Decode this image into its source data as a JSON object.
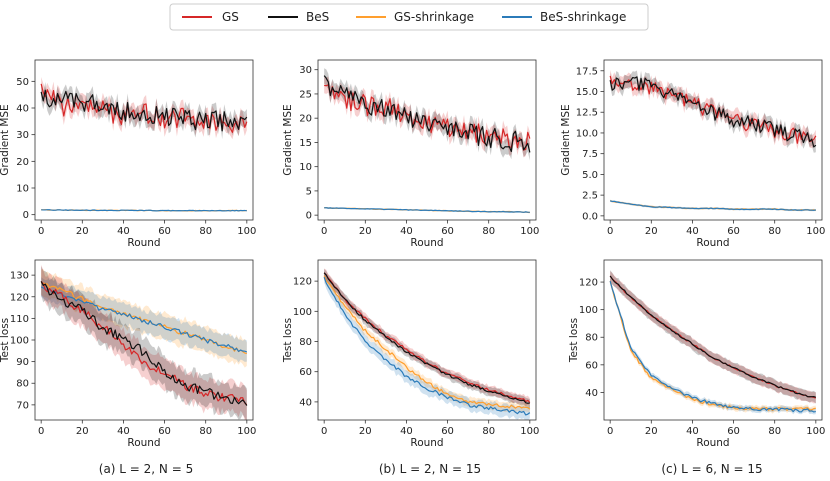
{
  "legend": [
    {
      "name": "GS",
      "color": "#d62728"
    },
    {
      "name": "BeS",
      "color": "#111111"
    },
    {
      "name": "GS-shrinkage",
      "color": "#ff9f2e"
    },
    {
      "name": "BeS-shrinkage",
      "color": "#2b7bb9"
    }
  ],
  "captions": [
    "(a) L = 2, N = 5",
    "(b) L = 2, N = 15",
    "(c) L = 6, N = 15"
  ],
  "chart_data": [
    {
      "type": "line",
      "title": "",
      "xlabel": "Round",
      "ylabel": "Gradient MSE",
      "xlim": [
        -3,
        103
      ],
      "ylim": [
        -2,
        58
      ],
      "xticks": [
        0,
        20,
        40,
        60,
        80,
        100
      ],
      "yticks": [
        0,
        10,
        20,
        30,
        40,
        50
      ],
      "x": [
        0,
        10,
        20,
        30,
        40,
        50,
        60,
        70,
        80,
        90,
        100
      ],
      "series": [
        {
          "name": "GS",
          "values": [
            48,
            41,
            40,
            39,
            37,
            38,
            36,
            37,
            35,
            34,
            34
          ],
          "spread": 3.5,
          "noise": 4,
          "band": 3
        },
        {
          "name": "BeS",
          "values": [
            45,
            42,
            43,
            40,
            38,
            37,
            37,
            36,
            35,
            35,
            33
          ],
          "spread": 3.5,
          "noise": 4,
          "band": 3
        },
        {
          "name": "GS-shrinkage",
          "values": [
            1.8,
            1.7,
            1.7,
            1.6,
            1.6,
            1.6,
            1.5,
            1.5,
            1.5,
            1.5,
            1.5
          ],
          "spread": 0.1,
          "noise": 0.05,
          "band": 0.2
        },
        {
          "name": "BeS-shrinkage",
          "values": [
            1.8,
            1.7,
            1.7,
            1.6,
            1.6,
            1.6,
            1.5,
            1.5,
            1.5,
            1.5,
            1.5
          ],
          "spread": 0.1,
          "noise": 0.05,
          "band": 0.2
        }
      ]
    },
    {
      "type": "line",
      "title": "",
      "xlabel": "Round",
      "ylabel": "Gradient MSE",
      "xlim": [
        -3,
        103
      ],
      "ylim": [
        -1,
        32
      ],
      "xticks": [
        0,
        20,
        40,
        60,
        80,
        100
      ],
      "yticks": [
        0,
        5,
        10,
        15,
        20,
        25,
        30
      ],
      "x": [
        0,
        10,
        20,
        30,
        40,
        50,
        60,
        70,
        80,
        90,
        100
      ],
      "series": [
        {
          "name": "GS",
          "values": [
            26,
            24,
            23,
            22,
            20,
            19,
            18,
            17,
            16,
            15.5,
            15
          ],
          "spread": 2,
          "noise": 2.2,
          "band": 1.6
        },
        {
          "name": "BeS",
          "values": [
            28,
            25,
            23,
            22,
            20,
            19,
            18,
            17,
            16,
            15.5,
            15
          ],
          "spread": 2,
          "noise": 2.2,
          "band": 1.6
        },
        {
          "name": "GS-shrinkage",
          "values": [
            1.5,
            1.4,
            1.3,
            1.2,
            1.1,
            1.0,
            0.9,
            0.8,
            0.7,
            0.7,
            0.6
          ],
          "spread": 0.05,
          "noise": 0.03,
          "band": 0.15
        },
        {
          "name": "BeS-shrinkage",
          "values": [
            1.5,
            1.4,
            1.3,
            1.2,
            1.1,
            1.0,
            0.9,
            0.8,
            0.7,
            0.7,
            0.6
          ],
          "spread": 0.05,
          "noise": 0.03,
          "band": 0.15
        }
      ]
    },
    {
      "type": "line",
      "title": "",
      "xlabel": "Round",
      "ylabel": "Gradient MSE",
      "xlim": [
        -3,
        103
      ],
      "ylim": [
        -0.5,
        18.8
      ],
      "xticks": [
        0,
        20,
        40,
        60,
        80,
        100
      ],
      "yticks": [
        0.0,
        2.5,
        5.0,
        7.5,
        10.0,
        12.5,
        15.0,
        17.5
      ],
      "x": [
        0,
        10,
        20,
        30,
        40,
        50,
        60,
        70,
        80,
        90,
        100
      ],
      "series": [
        {
          "name": "GS",
          "values": [
            16.5,
            16,
            15.5,
            14.5,
            13.5,
            12.5,
            11.5,
            11,
            10.3,
            9.7,
            9
          ],
          "spread": 0.8,
          "noise": 0.9,
          "band": 0.8
        },
        {
          "name": "BeS",
          "values": [
            16,
            16.2,
            15.8,
            14.5,
            13.5,
            12.5,
            11.5,
            11,
            10.3,
            9.7,
            9
          ],
          "spread": 0.8,
          "noise": 0.9,
          "band": 0.8
        },
        {
          "name": "GS-shrinkage",
          "values": [
            1.8,
            1.4,
            1.1,
            1.0,
            0.9,
            0.9,
            0.8,
            0.8,
            0.8,
            0.7,
            0.7
          ],
          "spread": 0.04,
          "noise": 0.03,
          "band": 0.12
        },
        {
          "name": "BeS-shrinkage",
          "values": [
            1.8,
            1.4,
            1.1,
            1.0,
            0.9,
            0.9,
            0.8,
            0.8,
            0.8,
            0.7,
            0.7
          ],
          "spread": 0.04,
          "noise": 0.03,
          "band": 0.12
        }
      ]
    },
    {
      "type": "line",
      "title": "",
      "xlabel": "Round",
      "ylabel": "Test loss",
      "xlim": [
        -3,
        103
      ],
      "ylim": [
        63,
        137
      ],
      "xticks": [
        0,
        20,
        40,
        60,
        80,
        100
      ],
      "yticks": [
        70,
        80,
        90,
        100,
        110,
        120,
        130
      ],
      "x": [
        0,
        10,
        20,
        30,
        40,
        50,
        60,
        70,
        80,
        90,
        100
      ],
      "series": [
        {
          "name": "GS",
          "values": [
            126,
            121,
            113,
            106,
            98,
            90,
            84,
            79,
            75,
            73,
            72
          ],
          "spread": 2,
          "noise": 1.6,
          "band": 7
        },
        {
          "name": "BeS",
          "values": [
            126,
            118,
            114,
            105,
            101,
            94,
            85,
            79,
            76,
            73,
            70
          ],
          "spread": 2,
          "noise": 1.6,
          "band": 7
        },
        {
          "name": "GS-shrinkage",
          "values": [
            126,
            123,
            119,
            115,
            112,
            109,
            106,
            103,
            100,
            97,
            94
          ],
          "spread": 1,
          "noise": 0.8,
          "band": 6
        },
        {
          "name": "BeS-shrinkage",
          "values": [
            124,
            121,
            118,
            114,
            112,
            109,
            106,
            103,
            100,
            97,
            94
          ],
          "spread": 1,
          "noise": 0.8,
          "band": 5
        }
      ]
    },
    {
      "type": "line",
      "title": "",
      "xlabel": "Round",
      "ylabel": "Test loss",
      "xlim": [
        -3,
        103
      ],
      "ylim": [
        28,
        134
      ],
      "xticks": [
        0,
        20,
        40,
        60,
        80,
        100
      ],
      "yticks": [
        40,
        60,
        80,
        100,
        120
      ],
      "x": [
        0,
        10,
        20,
        30,
        40,
        50,
        60,
        70,
        80,
        90,
        100
      ],
      "series": [
        {
          "name": "GS",
          "values": [
            125,
            108,
            95,
            84,
            75,
            66,
            59,
            53,
            48,
            44,
            40
          ],
          "spread": 0.8,
          "noise": 0.8,
          "band": 3
        },
        {
          "name": "BeS",
          "values": [
            125,
            108,
            94,
            83,
            73,
            65,
            58,
            52,
            47,
            43,
            39
          ],
          "spread": 0.8,
          "noise": 0.8,
          "band": 3
        },
        {
          "name": "GS-shrinkage",
          "values": [
            123,
            103,
            87,
            75,
            63,
            53,
            45,
            40,
            38,
            37,
            35
          ],
          "spread": 1,
          "noise": 0.8,
          "band": 3
        },
        {
          "name": "BeS-shrinkage",
          "values": [
            122,
            98,
            80,
            68,
            57,
            49,
            43,
            38,
            36,
            34,
            32
          ],
          "spread": 1,
          "noise": 0.8,
          "band": 4
        }
      ]
    },
    {
      "type": "line",
      "title": "",
      "xlabel": "Round",
      "ylabel": "Test loss",
      "xlim": [
        -3,
        103
      ],
      "ylim": [
        20,
        136
      ],
      "xticks": [
        0,
        20,
        40,
        60,
        80,
        100
      ],
      "yticks": [
        40,
        60,
        80,
        100,
        120
      ],
      "x": [
        0,
        10,
        20,
        30,
        40,
        50,
        60,
        70,
        80,
        90,
        100
      ],
      "series": [
        {
          "name": "GS",
          "values": [
            124,
            109,
            96,
            85,
            75,
            65,
            58,
            51,
            45,
            40,
            36
          ],
          "spread": 0.6,
          "noise": 0.5,
          "band": 4
        },
        {
          "name": "BeS",
          "values": [
            124,
            109,
            96,
            85,
            75,
            65,
            58,
            51,
            45,
            40,
            36
          ],
          "spread": 0.6,
          "noise": 0.5,
          "band": 4
        },
        {
          "name": "GS-shrinkage",
          "values": [
            120,
            70,
            50,
            42,
            35,
            31,
            29,
            28,
            28,
            28,
            28
          ],
          "spread": 1,
          "noise": 1,
          "band": 2
        },
        {
          "name": "BeS-shrinkage",
          "values": [
            120,
            72,
            52,
            43,
            36,
            32,
            29,
            28,
            28,
            27,
            27
          ],
          "spread": 1,
          "noise": 1,
          "band": 2
        }
      ]
    }
  ]
}
